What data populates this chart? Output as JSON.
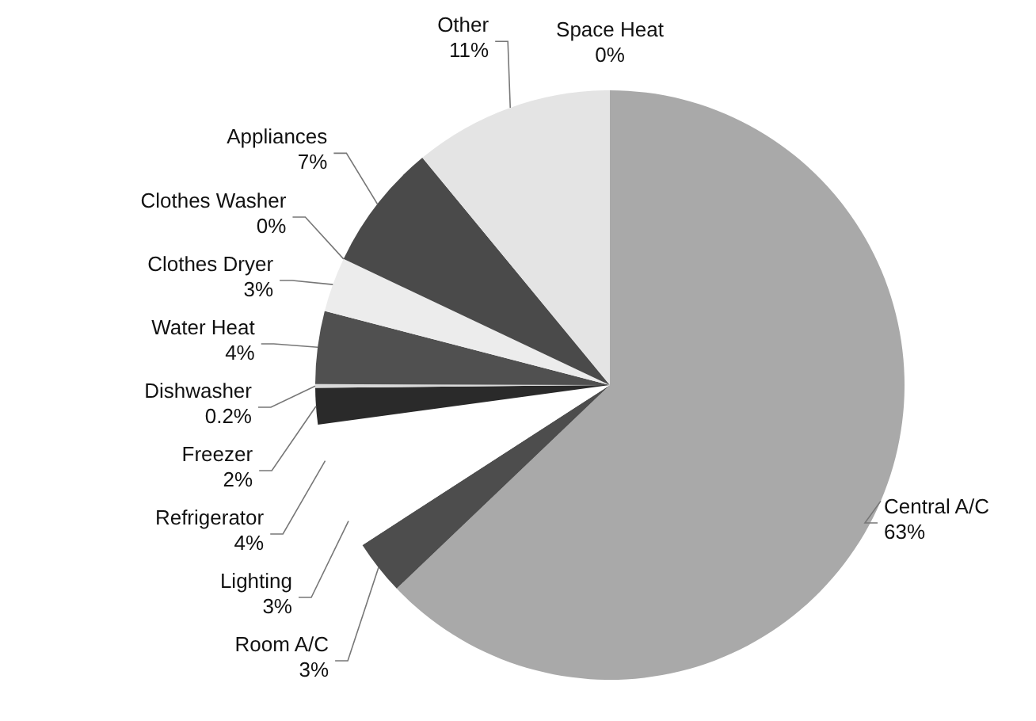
{
  "chart_data": {
    "type": "pie",
    "categories": [
      "Central A/C",
      "Room A/C",
      "Lighting",
      "Refrigerator",
      "Freezer",
      "Dishwasher",
      "Water Heat",
      "Clothes Dryer",
      "Clothes Washer",
      "Appliances",
      "Other",
      "Space Heat"
    ],
    "values": [
      63,
      3,
      3,
      4,
      2,
      0.2,
      4,
      3,
      0,
      7,
      11,
      0
    ],
    "value_labels": [
      "63%",
      "3%",
      "3%",
      "4%",
      "2%",
      "0.2%",
      "4%",
      "3%",
      "0%",
      "7%",
      "11%",
      "0%"
    ],
    "colors": [
      "#a9a9a9",
      "#4d4d4d",
      "#ffffff",
      "#ffffff",
      "#2a2a2a",
      "#d9d9d9",
      "#505050",
      "#ececec",
      "#3a3a3a",
      "#4a4a4a",
      "#e4e4e4",
      "#cccccc"
    ]
  }
}
